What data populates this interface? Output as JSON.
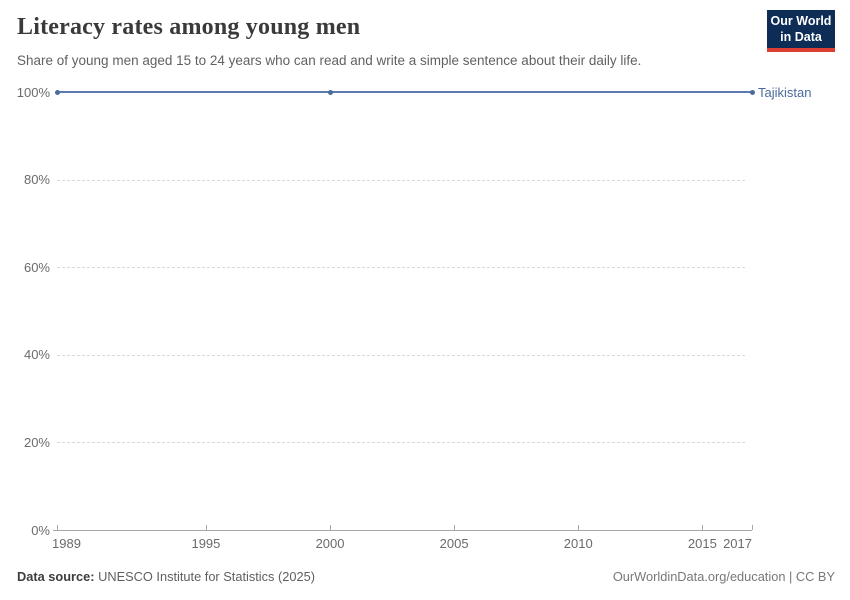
{
  "header": {
    "title": "Literacy rates among young men",
    "subtitle": "Share of young men aged 15 to 24 years who can read and write a simple sentence about their daily life."
  },
  "logo": {
    "line1": "Our World",
    "line2": "in Data",
    "bg_color": "#0d2d56",
    "accent_color": "#dc3e32"
  },
  "chart_data": {
    "type": "line",
    "title": "Literacy rates among young men",
    "xlabel": "",
    "ylabel": "",
    "xlim": [
      1989,
      2017
    ],
    "ylim": [
      0,
      100
    ],
    "x_ticks": [
      1989,
      1995,
      2000,
      2005,
      2010,
      2015,
      2017
    ],
    "y_ticks": [
      0,
      20,
      40,
      60,
      80,
      100
    ],
    "y_tick_suffix": "%",
    "grid": "horizontal-dashed",
    "legend_position": "end-of-line",
    "series": [
      {
        "name": "Tajikistan",
        "line_color": "#5b7aad",
        "marker_color": "#4c6a9c",
        "label_color": "#4c6a9c",
        "points": [
          {
            "x": 1989,
            "y": 100
          },
          {
            "x": 2000,
            "y": 100
          },
          {
            "x": 2017,
            "y": 100
          }
        ]
      }
    ]
  },
  "footer": {
    "datasource_label": "Data source:",
    "datasource_value": " UNESCO Institute for Statistics (2025)",
    "attribution": "OurWorldinData.org/education | CC BY"
  }
}
